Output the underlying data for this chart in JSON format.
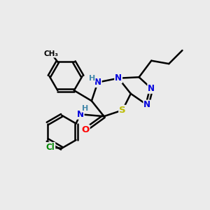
{
  "bg_color": "#ebebeb",
  "bond_color": "#000000",
  "bond_width": 1.8,
  "atom_colors": {
    "N": "#0000dd",
    "S": "#bbbb00",
    "O": "#ff0000",
    "Cl": "#008800",
    "C": "#000000",
    "H": "#4488aa"
  },
  "font_size": 8.5,
  "figsize": [
    3.0,
    3.0
  ],
  "dpi": 100
}
